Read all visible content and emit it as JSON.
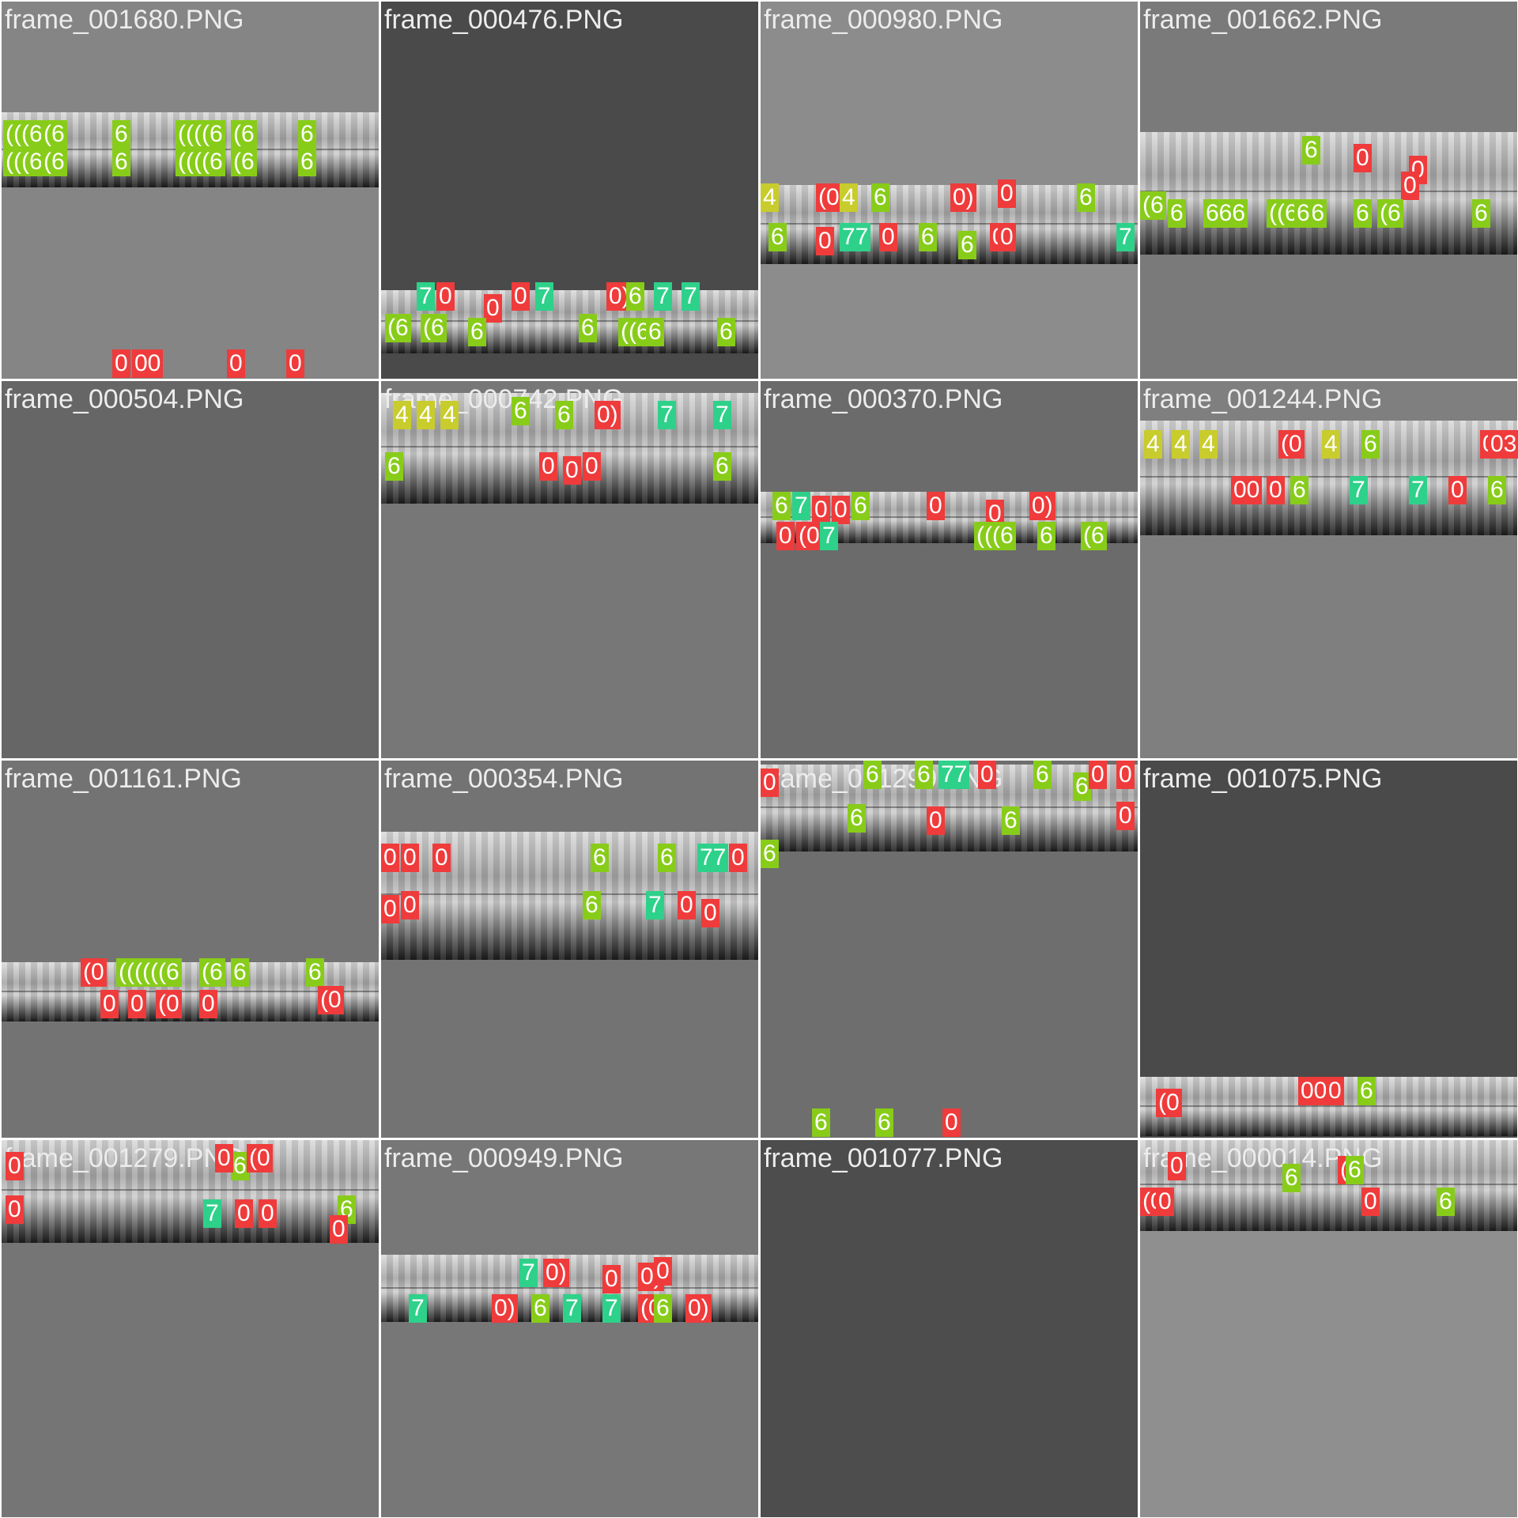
{
  "colors": {
    "class_0": "#ef3b3b",
    "class_4": "#c8cc2c",
    "class_6": "#88cc1a",
    "class_7": "#2ed18a",
    "caption": "#ececec"
  },
  "tiles": [
    {
      "filename": "frame_001680.PNG",
      "background": "#858585",
      "detections": [
        {
          "label": "(((6",
          "cls": 6
        },
        {
          "label": "(6",
          "cls": 6
        },
        {
          "label": "6",
          "cls": 6
        },
        {
          "label": "((((6",
          "cls": 6
        },
        {
          "label": "(6",
          "cls": 6
        },
        {
          "label": "6",
          "cls": 6
        },
        {
          "label": "(((6",
          "cls": 6
        },
        {
          "label": "(6",
          "cls": 6
        },
        {
          "label": "6",
          "cls": 6
        },
        {
          "label": "((((6",
          "cls": 6
        },
        {
          "label": "(6",
          "cls": 6
        },
        {
          "label": "6",
          "cls": 6
        },
        {
          "label": "0",
          "cls": 0
        },
        {
          "label": "00",
          "cls": 0
        },
        {
          "label": "0",
          "cls": 0
        },
        {
          "label": "0",
          "cls": 0
        }
      ]
    },
    {
      "filename": "frame_000476.PNG",
      "background": "#4a4a4a",
      "detections": [
        {
          "label": "7",
          "cls": 7
        },
        {
          "label": "0",
          "cls": 0
        },
        {
          "label": "0",
          "cls": 0
        },
        {
          "label": "0",
          "cls": 0
        },
        {
          "label": "7",
          "cls": 7
        },
        {
          "label": "0)",
          "cls": 0
        },
        {
          "label": "6",
          "cls": 6
        },
        {
          "label": "7",
          "cls": 7
        },
        {
          "label": "7",
          "cls": 7
        },
        {
          "label": "(6",
          "cls": 6
        },
        {
          "label": "(6",
          "cls": 6
        },
        {
          "label": "6",
          "cls": 6
        },
        {
          "label": "6",
          "cls": 6
        },
        {
          "label": "((6",
          "cls": 6
        },
        {
          "label": "6",
          "cls": 6
        },
        {
          "label": "6",
          "cls": 6
        }
      ]
    },
    {
      "filename": "frame_000980.PNG",
      "background": "#8c8c8c",
      "detections": [
        {
          "label": "4",
          "cls": 4
        },
        {
          "label": "(0",
          "cls": 0
        },
        {
          "label": "4",
          "cls": 4
        },
        {
          "label": "6",
          "cls": 6
        },
        {
          "label": "0)",
          "cls": 0
        },
        {
          "label": "0",
          "cls": 0
        },
        {
          "label": "6",
          "cls": 6
        },
        {
          "label": "6",
          "cls": 6
        },
        {
          "label": "0",
          "cls": 0
        },
        {
          "label": "77",
          "cls": 7
        },
        {
          "label": "0",
          "cls": 0
        },
        {
          "label": "6",
          "cls": 6
        },
        {
          "label": "6",
          "cls": 6
        },
        {
          "label": "0",
          "cls": 0
        },
        {
          "label": "0",
          "cls": 0
        },
        {
          "label": "7",
          "cls": 7
        }
      ]
    },
    {
      "filename": "frame_001662.PNG",
      "background": "#7a7a7a",
      "detections": [
        {
          "label": "6",
          "cls": 6
        },
        {
          "label": "0",
          "cls": 0
        },
        {
          "label": "0",
          "cls": 0
        },
        {
          "label": "0",
          "cls": 0
        },
        {
          "label": "(6",
          "cls": 6
        },
        {
          "label": "6",
          "cls": 6
        },
        {
          "label": "666",
          "cls": 6
        },
        {
          "label": "((666",
          "cls": 6
        },
        {
          "label": "6",
          "cls": 6
        },
        {
          "label": "6",
          "cls": 6
        },
        {
          "label": "(6",
          "cls": 6
        },
        {
          "label": "6",
          "cls": 6
        }
      ]
    },
    {
      "filename": "frame_000504.PNG",
      "background": "#666666",
      "detections": []
    },
    {
      "filename": "frame_000742.PNG",
      "background": "#777777",
      "detections": [
        {
          "label": "4",
          "cls": 4
        },
        {
          "label": "4",
          "cls": 4
        },
        {
          "label": "4",
          "cls": 4
        },
        {
          "label": "6",
          "cls": 6
        },
        {
          "label": "6",
          "cls": 6
        },
        {
          "label": "0)",
          "cls": 0
        },
        {
          "label": "7",
          "cls": 7
        },
        {
          "label": "7",
          "cls": 7
        },
        {
          "label": "6",
          "cls": 6
        },
        {
          "label": "0",
          "cls": 0
        },
        {
          "label": "0",
          "cls": 0
        },
        {
          "label": "0",
          "cls": 0
        },
        {
          "label": "6",
          "cls": 6
        }
      ]
    },
    {
      "filename": "frame_000370.PNG",
      "background": "#6b6b6b",
      "detections": [
        {
          "label": "6",
          "cls": 6
        },
        {
          "label": "7",
          "cls": 7
        },
        {
          "label": "0",
          "cls": 0
        },
        {
          "label": "0",
          "cls": 0
        },
        {
          "label": "6",
          "cls": 6
        },
        {
          "label": "0",
          "cls": 0
        },
        {
          "label": "0",
          "cls": 0
        },
        {
          "label": "0)",
          "cls": 0
        },
        {
          "label": "0",
          "cls": 0
        },
        {
          "label": "(0",
          "cls": 0
        },
        {
          "label": "7",
          "cls": 7
        },
        {
          "label": "(((6",
          "cls": 6
        },
        {
          "label": "6",
          "cls": 6
        },
        {
          "label": "(6",
          "cls": 6
        }
      ]
    },
    {
      "filename": "frame_001244.PNG",
      "background": "#7f7f7f",
      "detections": [
        {
          "label": "4",
          "cls": 4
        },
        {
          "label": "4",
          "cls": 4
        },
        {
          "label": "4",
          "cls": 4
        },
        {
          "label": "(0",
          "cls": 0
        },
        {
          "label": "4",
          "cls": 4
        },
        {
          "label": "6",
          "cls": 6
        },
        {
          "label": "0",
          "cls": 0
        },
        {
          "label": "03",
          "cls": 0
        },
        {
          "label": "00",
          "cls": 0
        },
        {
          "label": "0",
          "cls": 0
        },
        {
          "label": "6",
          "cls": 6
        },
        {
          "label": "7",
          "cls": 7
        },
        {
          "label": "7",
          "cls": 7
        },
        {
          "label": "0",
          "cls": 0
        },
        {
          "label": "6",
          "cls": 6
        }
      ]
    },
    {
      "filename": "frame_001161.PNG",
      "background": "#737373",
      "detections": [
        {
          "label": "(0",
          "cls": 0
        },
        {
          "label": "((((((6",
          "cls": 6
        },
        {
          "label": "6",
          "cls": 6
        },
        {
          "label": "(6",
          "cls": 6
        },
        {
          "label": "6",
          "cls": 6
        },
        {
          "label": "(0",
          "cls": 0
        },
        {
          "label": "0",
          "cls": 0
        },
        {
          "label": "0",
          "cls": 0
        },
        {
          "label": "(0",
          "cls": 0
        },
        {
          "label": "0",
          "cls": 0
        }
      ]
    },
    {
      "filename": "frame_000354.PNG",
      "background": "#737373",
      "detections": [
        {
          "label": "0",
          "cls": 0
        },
        {
          "label": "0",
          "cls": 0
        },
        {
          "label": "0",
          "cls": 0
        },
        {
          "label": "6",
          "cls": 6
        },
        {
          "label": "6",
          "cls": 6
        },
        {
          "label": "77",
          "cls": 7
        },
        {
          "label": "0",
          "cls": 0
        },
        {
          "label": "0",
          "cls": 0
        },
        {
          "label": "0",
          "cls": 0
        },
        {
          "label": "6",
          "cls": 6
        },
        {
          "label": "7",
          "cls": 7
        },
        {
          "label": "0",
          "cls": 0
        },
        {
          "label": "0",
          "cls": 0
        }
      ]
    },
    {
      "filename": "frame_001299.PNG",
      "background": "#6e6e6e",
      "detections": [
        {
          "label": "0",
          "cls": 0
        },
        {
          "label": "6",
          "cls": 6
        },
        {
          "label": "6",
          "cls": 6
        },
        {
          "label": "77",
          "cls": 7
        },
        {
          "label": "0",
          "cls": 0
        },
        {
          "label": "6",
          "cls": 6
        },
        {
          "label": "6",
          "cls": 6
        },
        {
          "label": "0",
          "cls": 0
        },
        {
          "label": "0",
          "cls": 0
        },
        {
          "label": "6",
          "cls": 6
        },
        {
          "label": "0",
          "cls": 0
        },
        {
          "label": "6",
          "cls": 6
        },
        {
          "label": "0",
          "cls": 0
        },
        {
          "label": "6",
          "cls": 6
        },
        {
          "label": "6",
          "cls": 6
        },
        {
          "label": "6",
          "cls": 6
        },
        {
          "label": "0",
          "cls": 0
        }
      ]
    },
    {
      "filename": "frame_001075.PNG",
      "background": "#4a4a4a",
      "detections": [
        {
          "label": "(0",
          "cls": 0
        },
        {
          "label": "00",
          "cls": 0
        },
        {
          "label": "0",
          "cls": 0
        },
        {
          "label": "6",
          "cls": 6
        }
      ]
    },
    {
      "filename": "frame_001279.PNG",
      "background": "#757575",
      "detections": [
        {
          "label": "0",
          "cls": 0
        },
        {
          "label": "6",
          "cls": 6
        },
        {
          "label": "0",
          "cls": 0
        },
        {
          "label": "(0",
          "cls": 0
        },
        {
          "label": "0",
          "cls": 0
        },
        {
          "label": "7",
          "cls": 7
        },
        {
          "label": "0",
          "cls": 0
        },
        {
          "label": "0",
          "cls": 0
        },
        {
          "label": "6",
          "cls": 6
        },
        {
          "label": "0",
          "cls": 0
        }
      ]
    },
    {
      "filename": "frame_000949.PNG",
      "background": "#777777",
      "detections": [
        {
          "label": "7",
          "cls": 7
        },
        {
          "label": "0)",
          "cls": 0
        },
        {
          "label": "0",
          "cls": 0
        },
        {
          "label": "0)",
          "cls": 0
        },
        {
          "label": "0",
          "cls": 0
        },
        {
          "label": "7",
          "cls": 7
        },
        {
          "label": "0)",
          "cls": 0
        },
        {
          "label": "6",
          "cls": 6
        },
        {
          "label": "7",
          "cls": 7
        },
        {
          "label": "7",
          "cls": 7
        },
        {
          "label": "(0",
          "cls": 0
        },
        {
          "label": "6",
          "cls": 6
        },
        {
          "label": "0)",
          "cls": 0
        }
      ]
    },
    {
      "filename": "frame_001077.PNG",
      "background": "#4d4d4d",
      "detections": []
    },
    {
      "filename": "frame_000014.PNG",
      "background": "#8f8f8f",
      "detections": [
        {
          "label": "0",
          "cls": 0
        },
        {
          "label": "(0",
          "cls": 0
        },
        {
          "label": "0",
          "cls": 0
        },
        {
          "label": "6",
          "cls": 6
        },
        {
          "label": "(0",
          "cls": 0
        },
        {
          "label": "6",
          "cls": 6
        },
        {
          "label": "0",
          "cls": 0
        },
        {
          "label": "6",
          "cls": 6
        }
      ]
    }
  ]
}
